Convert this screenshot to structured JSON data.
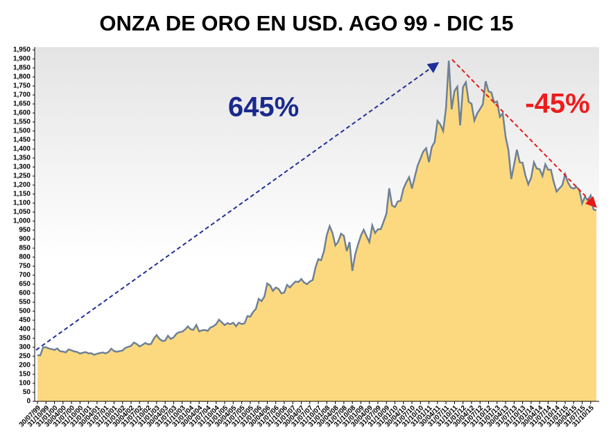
{
  "chart_data": {
    "type": "area",
    "title": "ONZA DE ORO EN USD. AGO 99 - DIC 15",
    "annotations": [
      "645%",
      "-45%"
    ],
    "fill_color": "#fcd97f",
    "line_color": "#6f8196",
    "grid": false,
    "categories": [
      "30/07/99",
      null,
      null,
      "31/10/99",
      null,
      null,
      "31/01/00",
      null,
      null,
      "30/04/00",
      null,
      null,
      "31/07/00",
      null,
      null,
      "31/10/00",
      null,
      null,
      "31/01/01",
      null,
      null,
      "30/04/01",
      null,
      null,
      "31/07/01",
      null,
      null,
      "31/10/01",
      null,
      null,
      "31/01/02",
      null,
      null,
      "30/04/02",
      null,
      null,
      "31/07/02",
      null,
      null,
      "31/10/02",
      null,
      null,
      "31/01/03",
      null,
      null,
      "30/04/03",
      null,
      null,
      "31/07/03",
      null,
      null,
      "31/10/03",
      null,
      null,
      "31/01/04",
      null,
      null,
      "30/04/04",
      null,
      null,
      "31/07/04",
      null,
      null,
      "31/10/04",
      null,
      null,
      "31/01/05",
      null,
      null,
      "30/04/05",
      null,
      null,
      "31/07/05",
      null,
      null,
      "31/10/05",
      null,
      null,
      "31/01/06",
      null,
      null,
      "30/04/06",
      null,
      null,
      "31/07/06",
      null,
      null,
      "31/10/06",
      null,
      null,
      "31/01/07",
      null,
      null,
      "30/04/07",
      null,
      null,
      "31/07/07",
      null,
      null,
      "31/10/07",
      null,
      null,
      "31/01/08",
      null,
      null,
      "30/04/08",
      null,
      null,
      "31/07/08",
      null,
      null,
      "31/10/08",
      null,
      null,
      "31/01/09",
      null,
      null,
      "30/04/09",
      null,
      null,
      "31/07/09",
      null,
      null,
      "31/10/09",
      null,
      null,
      "31/01/10",
      null,
      null,
      "30/04/10",
      null,
      null,
      "31/07/10",
      null,
      null,
      "31/10/10",
      null,
      null,
      "31/01/11",
      null,
      null,
      "30/04/11",
      null,
      null,
      "31/07/11",
      null,
      null,
      "31/10/11",
      null,
      null,
      "31/01/12",
      null,
      null,
      "30/04/12",
      null,
      null,
      "31/07/12",
      null,
      null,
      "31/10/12",
      null,
      null,
      "31/01/13",
      null,
      null,
      "30/04/13",
      null,
      null,
      "31/07/13",
      null,
      null,
      "31/10/13",
      null,
      null,
      "31/01/14",
      null,
      null,
      "30/04/14",
      null,
      null,
      "31/07/14",
      null,
      null,
      "31/10/14",
      null,
      null,
      "31/01/15",
      null,
      null,
      "30/04/15",
      null,
      null,
      "31/07/15",
      null,
      null,
      "31/10/15",
      null,
      null
    ],
    "values": [
      256,
      255,
      300,
      300,
      293,
      290,
      285,
      293,
      278,
      276,
      272,
      288,
      283,
      277,
      274,
      265,
      270,
      273,
      266,
      267,
      258,
      264,
      268,
      271,
      266,
      273,
      292,
      279,
      275,
      279,
      282,
      297,
      302,
      308,
      326,
      318,
      305,
      313,
      324,
      316,
      318,
      347,
      368,
      347,
      335,
      337,
      364,
      346,
      355,
      375,
      384,
      386,
      398,
      416,
      400,
      397,
      424,
      388,
      394,
      396,
      391,
      410,
      416,
      429,
      453,
      438,
      423,
      434,
      428,
      436,
      417,
      437,
      429,
      433,
      473,
      470,
      495,
      513,
      569,
      556,
      582,
      654,
      643,
      613,
      632,
      623,
      599,
      604,
      646,
      632,
      650,
      665,
      662,
      679,
      659,
      650,
      665,
      673,
      743,
      789,
      783,
      834,
      923,
      972,
      934,
      865,
      886,
      930,
      918,
      834,
      884,
      724,
      815,
      870,
      919,
      952,
      916,
      883,
      976,
      934,
      955,
      955,
      996,
      1040,
      1182,
      1087,
      1078,
      1109,
      1113,
      1180,
      1215,
      1244,
      1181,
      1246,
      1307,
      1346,
      1386,
      1405,
      1327,
      1411,
      1439,
      1556,
      1536,
      1500,
      1628,
      1890,
      1620,
      1722,
      1746,
      1531,
      1744,
      1770,
      1662,
      1651,
      1558,
      1598,
      1622,
      1648,
      1776,
      1720,
      1714,
      1657,
      1664,
      1578,
      1598,
      1469,
      1394,
      1234,
      1314,
      1396,
      1326,
      1324,
      1253,
      1204,
      1240,
      1326,
      1291,
      1288,
      1250,
      1315,
      1285,
      1285,
      1216,
      1164,
      1182,
      1199,
      1260,
      1214,
      1187,
      1180,
      1190,
      1172,
      1098,
      1135,
      1115,
      1142,
      1065,
      1060
    ],
    "ylim": [
      0,
      1950
    ],
    "yticks": [
      0,
      50,
      100,
      150,
      200,
      250,
      300,
      350,
      400,
      450,
      500,
      550,
      600,
      650,
      700,
      750,
      800,
      850,
      900,
      950,
      {
        "value": 1000,
        "label": "1,000"
      },
      {
        "value": 1050,
        "label": "1,050"
      },
      {
        "value": 1100,
        "label": "1,100"
      },
      {
        "value": 1150,
        "label": "1,150"
      },
      {
        "value": 1200,
        "label": "1,200"
      },
      {
        "value": 1250,
        "label": "1,250"
      },
      {
        "value": 1300,
        "label": "1,300"
      },
      {
        "value": 1350,
        "label": "1,350"
      },
      {
        "value": 1400,
        "label": "1,400"
      },
      {
        "value": 1450,
        "label": "1,450"
      },
      {
        "value": 1500,
        "label": "1,500"
      },
      {
        "value": 1550,
        "label": "1,550"
      },
      {
        "value": 1600,
        "label": "1,600"
      },
      {
        "value": 1650,
        "label": "1,650"
      },
      {
        "value": 1700,
        "label": "1,700"
      },
      {
        "value": 1750,
        "label": "1,750"
      },
      {
        "value": 1800,
        "label": "1,800"
      },
      {
        "value": 1850,
        "label": "1,850"
      },
      {
        "value": 1900,
        "label": "1,900"
      },
      {
        "value": 1950,
        "label": "1,950"
      }
    ]
  }
}
